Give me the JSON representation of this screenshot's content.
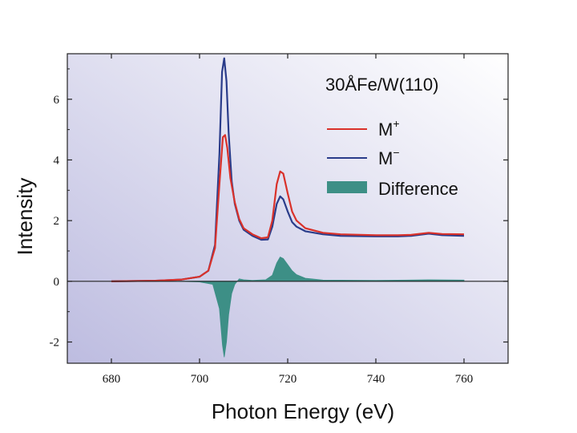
{
  "chart_data": {
    "type": "line",
    "xlabel": "Photon Energy (eV)",
    "ylabel": "Intensity",
    "xlim": [
      670,
      770
    ],
    "ylim": [
      -2.7,
      7.5
    ],
    "xticks": [
      680,
      700,
      720,
      740,
      760
    ],
    "yticks": [
      -2,
      0,
      2,
      4,
      6
    ],
    "grid": false,
    "legend": {
      "placement": "top-right",
      "annotation": "30ÅFe/W(110)",
      "entries": [
        {
          "label": "M",
          "sup": "+",
          "color": "#d9312a"
        },
        {
          "label": "M",
          "sup": "−",
          "color": "#2a3c8a"
        },
        {
          "label": "Difference",
          "sup": "",
          "color": "#3d8f86"
        }
      ]
    },
    "background": {
      "gradient_from": "#bdbce0",
      "gradient_to": "#ffffff"
    },
    "series": [
      {
        "name": "M+",
        "color": "#d9312a",
        "x": [
          680,
          690,
          696,
          700,
          702,
          703.5,
          704.5,
          705.3,
          705.8,
          706.3,
          707,
          708,
          709,
          710,
          712,
          714,
          715.5,
          716.5,
          717.5,
          718.3,
          719,
          720,
          721,
          722,
          724,
          728,
          732,
          740,
          745,
          748,
          752,
          755,
          760
        ],
        "y": [
          0.0,
          0.02,
          0.06,
          0.15,
          0.35,
          1.1,
          3.2,
          4.75,
          4.82,
          4.4,
          3.4,
          2.6,
          2.05,
          1.75,
          1.55,
          1.42,
          1.45,
          2.0,
          3.2,
          3.62,
          3.55,
          2.9,
          2.3,
          2.0,
          1.75,
          1.6,
          1.55,
          1.52,
          1.52,
          1.53,
          1.6,
          1.56,
          1.55
        ]
      },
      {
        "name": "M-",
        "color": "#2a3c8a",
        "x": [
          680,
          690,
          696,
          700,
          702,
          703.5,
          704.5,
          705.1,
          705.6,
          706.1,
          706.6,
          707.3,
          708,
          709,
          710,
          712,
          714,
          715.5,
          716.5,
          717.5,
          718.3,
          719,
          720,
          721,
          722,
          724,
          728,
          732,
          740,
          745,
          748,
          752,
          755,
          760
        ],
        "y": [
          0.0,
          0.02,
          0.06,
          0.15,
          0.35,
          1.2,
          4.2,
          6.9,
          7.35,
          6.6,
          4.9,
          3.3,
          2.55,
          2.0,
          1.7,
          1.5,
          1.37,
          1.38,
          1.8,
          2.55,
          2.8,
          2.7,
          2.3,
          1.95,
          1.8,
          1.65,
          1.55,
          1.5,
          1.48,
          1.48,
          1.5,
          1.57,
          1.52,
          1.5
        ]
      },
      {
        "name": "Difference",
        "color": "#3d8f86",
        "x": [
          680,
          695,
          700,
          703,
          704.5,
          705.2,
          705.6,
          706.1,
          706.6,
          707.3,
          708,
          709,
          710,
          712,
          715,
          716.5,
          717.5,
          718.3,
          719,
          720,
          721,
          722,
          724,
          728,
          740,
          752,
          760
        ],
        "y": [
          0.0,
          0.0,
          -0.02,
          -0.1,
          -0.9,
          -2.1,
          -2.5,
          -2.0,
          -1.1,
          -0.4,
          -0.1,
          0.08,
          0.05,
          0.03,
          0.05,
          0.2,
          0.6,
          0.8,
          0.75,
          0.55,
          0.35,
          0.22,
          0.1,
          0.04,
          0.03,
          0.05,
          0.04
        ]
      }
    ]
  }
}
